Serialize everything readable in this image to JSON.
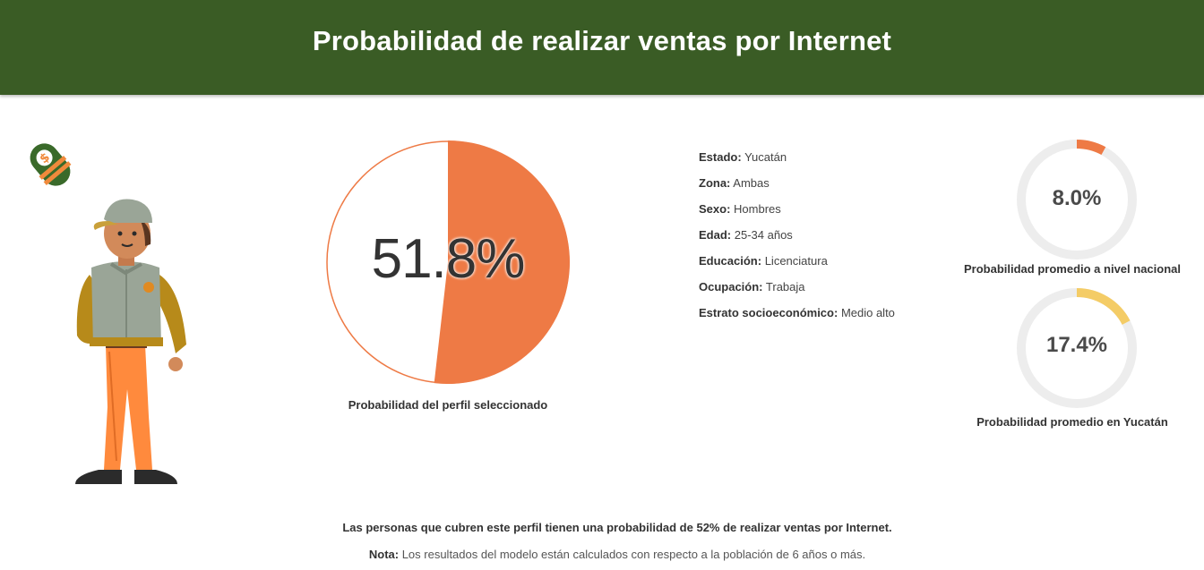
{
  "header": {
    "title": "Probabilidad de realizar ventas por Internet"
  },
  "colors": {
    "header_bg": "#3a5c25",
    "profile_color": "#ee7a45",
    "national_color": "#ee7a45",
    "state_color": "#f4cc66",
    "ring_bg": "#ededed"
  },
  "icons": {
    "badge": "money-tag-icon",
    "illustration": "man-with-cap-illustration"
  },
  "profile": {
    "rows": [
      {
        "key": "Estado:",
        "value": "Yucatán"
      },
      {
        "key": "Zona:",
        "value": "Ambas"
      },
      {
        "key": "Sexo:",
        "value": "Hombres"
      },
      {
        "key": "Edad:",
        "value": "25-34 años"
      },
      {
        "key": "Educación:",
        "value": "Licenciatura"
      },
      {
        "key": "Ocupación:",
        "value": "Trabaja"
      },
      {
        "key": "Estrato socioeconómico:",
        "value": "Medio alto"
      }
    ]
  },
  "chart_data": [
    {
      "type": "pie",
      "value": 51.8,
      "value_label": "51.8%",
      "caption": "Probabilidad del perfil seleccionado"
    },
    {
      "type": "pie",
      "value": 8.0,
      "value_label": "8.0%",
      "caption": "Probabilidad promedio a nivel nacional"
    },
    {
      "type": "pie",
      "value": 17.4,
      "value_label": "17.4%",
      "caption": "Probabilidad promedio en Yucatán"
    }
  ],
  "footer": {
    "summary": "Las personas que cubren este perfil tienen una probabilidad de 52% de realizar ventas por Internet.",
    "note_label": "Nota:",
    "note_text": " Los resultados del modelo están calculados con respecto a la población de 6 años o más."
  }
}
